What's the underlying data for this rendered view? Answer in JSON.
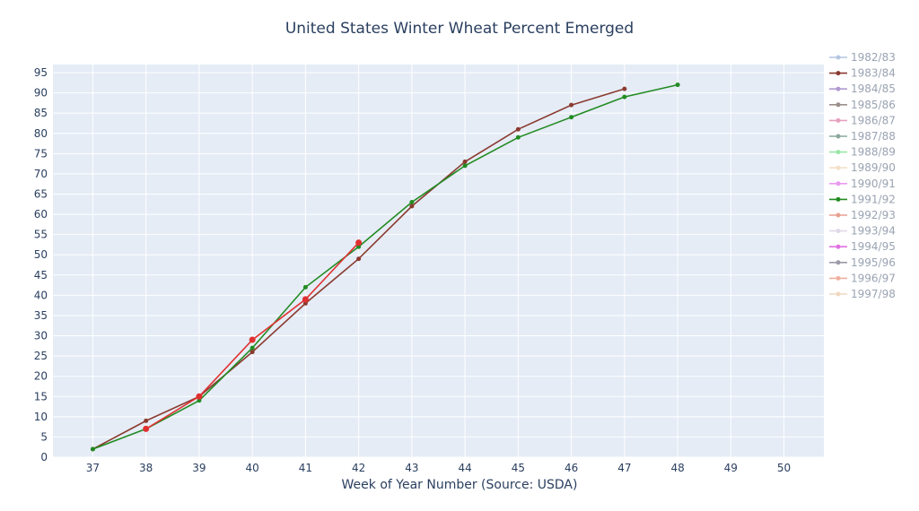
{
  "chart_data": {
    "type": "line",
    "title": "United States Winter Wheat Percent Emerged",
    "xlabel": "Week of Year Number     (Source: USDA)",
    "ylabel": "",
    "xlim": [
      36.25,
      50.75
    ],
    "ylim": [
      0,
      97
    ],
    "x_ticks": [
      37,
      38,
      39,
      40,
      41,
      42,
      43,
      44,
      45,
      46,
      47,
      48,
      49,
      50
    ],
    "y_ticks": [
      0,
      5,
      10,
      15,
      20,
      25,
      30,
      35,
      40,
      45,
      50,
      55,
      60,
      65,
      70,
      75,
      80,
      85,
      90,
      95
    ],
    "grid": true,
    "legend_position": "right",
    "series": [
      {
        "name": "1982/83",
        "color": "#b3c6e0",
        "x": [],
        "y": []
      },
      {
        "name": "1983/84",
        "color": "#8b3a2f",
        "x": [
          37,
          38,
          39,
          40,
          41,
          42,
          43,
          44,
          45,
          46,
          47
        ],
        "y": [
          2,
          9,
          15,
          26,
          38,
          49,
          62,
          73,
          81,
          87,
          91
        ]
      },
      {
        "name": "1984/85",
        "color": "#b09ad0",
        "x": [],
        "y": []
      },
      {
        "name": "1985/86",
        "color": "#9a8f8a",
        "x": [],
        "y": []
      },
      {
        "name": "1986/87",
        "color": "#e8a0c0",
        "x": [],
        "y": []
      },
      {
        "name": "1987/88",
        "color": "#8aa89a",
        "x": [],
        "y": []
      },
      {
        "name": "1988/89",
        "color": "#99e6a8",
        "x": [],
        "y": []
      },
      {
        "name": "1989/90",
        "color": "#f2e0c8",
        "x": [],
        "y": []
      },
      {
        "name": "1990/91",
        "color": "#e99af0",
        "x": [],
        "y": []
      },
      {
        "name": "1991/92",
        "color": "#228b22",
        "x": [
          37,
          38,
          39,
          40,
          41,
          42,
          43,
          44,
          45,
          46,
          47,
          48
        ],
        "y": [
          2,
          7,
          14,
          27,
          42,
          52,
          63,
          72,
          79,
          84,
          89,
          92
        ]
      },
      {
        "name": "1992/93",
        "color": "#e8a090",
        "x": [],
        "y": []
      },
      {
        "name": "1993/94",
        "color": "#e0d8e8",
        "x": [],
        "y": []
      },
      {
        "name": "1994/95",
        "color": "#e070e0",
        "x": [],
        "y": []
      },
      {
        "name": "1995/96",
        "color": "#9a9aa8",
        "x": [],
        "y": []
      },
      {
        "name": "1996/97",
        "color": "#f0b0a0",
        "x": [],
        "y": []
      },
      {
        "name": "1997/98",
        "color": "#f0d8c0",
        "x": [],
        "y": []
      },
      {
        "name": "",
        "color": "#e03030",
        "x": [
          38,
          39,
          40,
          41,
          42
        ],
        "y": [
          7,
          15,
          29,
          39,
          53
        ],
        "marker_size": 7
      }
    ]
  }
}
